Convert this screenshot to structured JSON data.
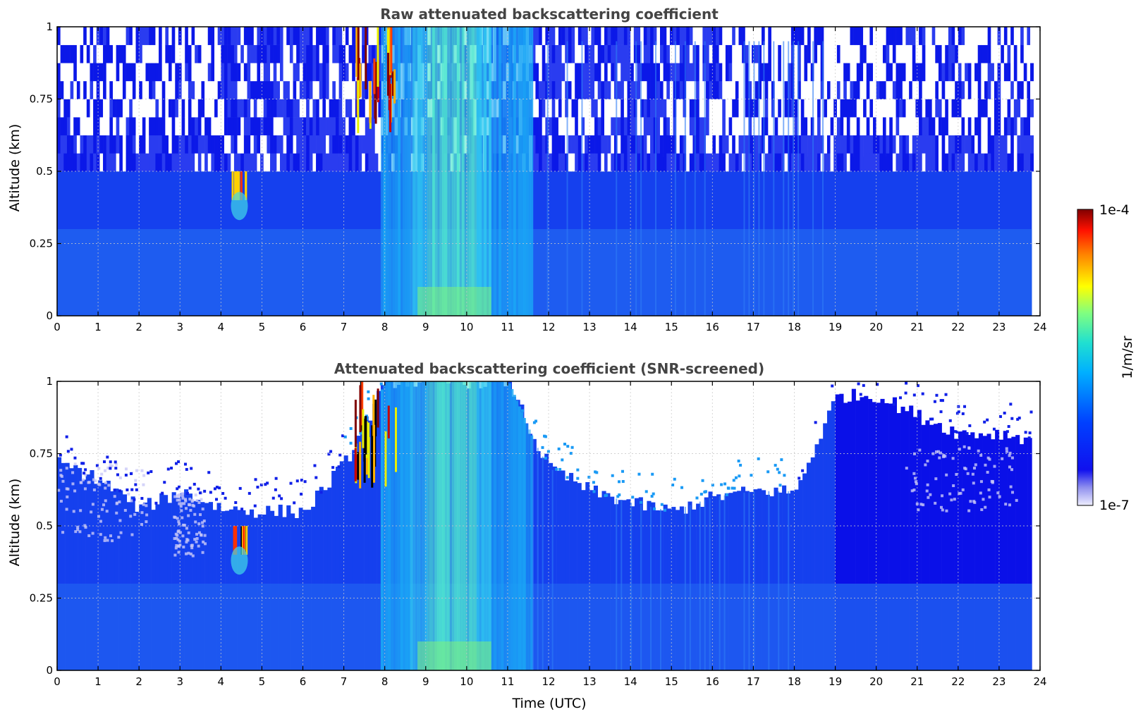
{
  "chart_data": [
    {
      "type": "heatmap",
      "title": "Raw attenuated backscattering coefficient",
      "xlabel": "",
      "ylabel": "Altitude (km)",
      "xlim": [
        0,
        24
      ],
      "ylim": [
        0,
        1
      ],
      "xticks": [
        "0",
        "1",
        "2",
        "3",
        "4",
        "5",
        "6",
        "7",
        "8",
        "9",
        "10",
        "11",
        "12",
        "13",
        "14",
        "15",
        "16",
        "17",
        "18",
        "19",
        "20",
        "21",
        "22",
        "23",
        "24"
      ],
      "yticks": [
        "0",
        "0.25",
        "0.5",
        "0.75",
        "1"
      ],
      "grid": true,
      "data_extent_hours": [
        0,
        23.8
      ],
      "features": [
        {
          "feature": "high-signal aerosol plume",
          "time_range": [
            8,
            11.5
          ],
          "altitude_range": [
            0,
            1
          ]
        },
        {
          "feature": "cloud / strong return",
          "time_range": [
            7.2,
            8.3
          ],
          "altitude_range": [
            0.55,
            1
          ]
        },
        {
          "feature": "cloud / strong return",
          "time_range": [
            4.2,
            4.6
          ],
          "altitude_range": [
            0.4,
            0.5
          ]
        },
        {
          "feature": "noise (low SNR)",
          "time_range": [
            0,
            23.8
          ],
          "altitude_range": [
            0.5,
            1
          ]
        }
      ]
    },
    {
      "type": "heatmap",
      "title": "Attenuated backscattering coefficient (SNR-screened)",
      "xlabel": "Time (UTC)",
      "ylabel": "Altitude (km)",
      "xlim": [
        0,
        24
      ],
      "ylim": [
        0,
        1
      ],
      "xticks": [
        "0",
        "1",
        "2",
        "3",
        "4",
        "5",
        "6",
        "7",
        "8",
        "9",
        "10",
        "11",
        "12",
        "13",
        "14",
        "15",
        "16",
        "17",
        "18",
        "19",
        "20",
        "21",
        "22",
        "23",
        "24"
      ],
      "yticks": [
        "0",
        "0.25",
        "0.5",
        "0.75",
        "1"
      ],
      "grid": true,
      "data_extent_hours": [
        0,
        23.8
      ],
      "valid_top_altitude_km": [
        [
          0,
          0.72
        ],
        [
          1,
          0.66
        ],
        [
          2,
          0.56
        ],
        [
          3,
          0.62
        ],
        [
          4,
          0.56
        ],
        [
          5,
          0.55
        ],
        [
          6,
          0.55
        ],
        [
          7,
          0.72
        ],
        [
          8,
          1.0
        ],
        [
          9,
          1.0
        ],
        [
          10,
          1.0
        ],
        [
          11,
          1.0
        ],
        [
          11.6,
          0.8
        ],
        [
          12,
          0.7
        ],
        [
          13,
          0.62
        ],
        [
          14,
          0.58
        ],
        [
          15,
          0.55
        ],
        [
          16,
          0.6
        ],
        [
          17,
          0.62
        ],
        [
          18,
          0.62
        ],
        [
          19,
          0.95
        ],
        [
          20,
          0.95
        ],
        [
          21,
          0.88
        ],
        [
          22,
          0.82
        ],
        [
          23,
          0.82
        ],
        [
          23.8,
          0.8
        ]
      ]
    }
  ],
  "colorbar": {
    "label": "1/m/sr",
    "max_label": "1e-4",
    "min_label": "1e-7",
    "scale": "log",
    "range": [
      1e-07,
      0.0001
    ],
    "colormap": "jet"
  }
}
